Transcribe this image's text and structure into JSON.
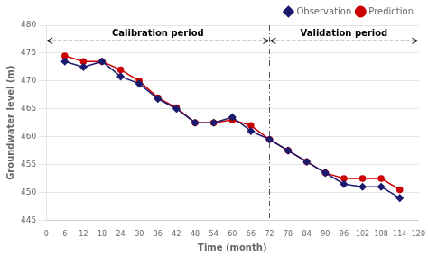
{
  "chart_data": {
    "type": "line",
    "x": [
      6,
      12,
      18,
      24,
      30,
      36,
      42,
      48,
      54,
      60,
      66,
      72,
      78,
      84,
      90,
      96,
      102,
      108,
      114
    ],
    "series": [
      {
        "name": "Observation",
        "color": "#1a1a6e",
        "marker": "diamond",
        "values": [
          473.5,
          472.5,
          473.5,
          470.8,
          469.5,
          466.8,
          465.0,
          462.5,
          462.5,
          463.5,
          461.0,
          459.5,
          457.5,
          455.5,
          453.5,
          451.5,
          451.0,
          451.0,
          449.0
        ]
      },
      {
        "name": "Prediction",
        "color": "#cc0000",
        "marker": "circle",
        "values": [
          474.5,
          473.5,
          473.5,
          472.0,
          470.0,
          467.0,
          465.2,
          462.5,
          462.5,
          463.0,
          462.0,
          459.5,
          457.5,
          455.5,
          453.5,
          452.5,
          452.5,
          452.5,
          450.5
        ]
      }
    ],
    "xlabel": "Time (month)",
    "ylabel": "Groundwater level (m)",
    "xlim": [
      0,
      120
    ],
    "ylim": [
      445,
      480
    ],
    "xticks": [
      0,
      6,
      12,
      18,
      24,
      30,
      36,
      42,
      48,
      54,
      60,
      66,
      72,
      78,
      84,
      90,
      96,
      102,
      108,
      114,
      120
    ],
    "yticks": [
      445,
      450,
      455,
      460,
      465,
      470,
      475,
      480
    ],
    "grid": "y",
    "legend": "upper right",
    "vlines": [
      72
    ],
    "annotations": [
      {
        "text": "Calibration period",
        "x": [
          0,
          72
        ],
        "y": 477.2
      },
      {
        "text": "Validation period",
        "x": [
          72,
          120
        ],
        "y": 477.2
      }
    ]
  }
}
